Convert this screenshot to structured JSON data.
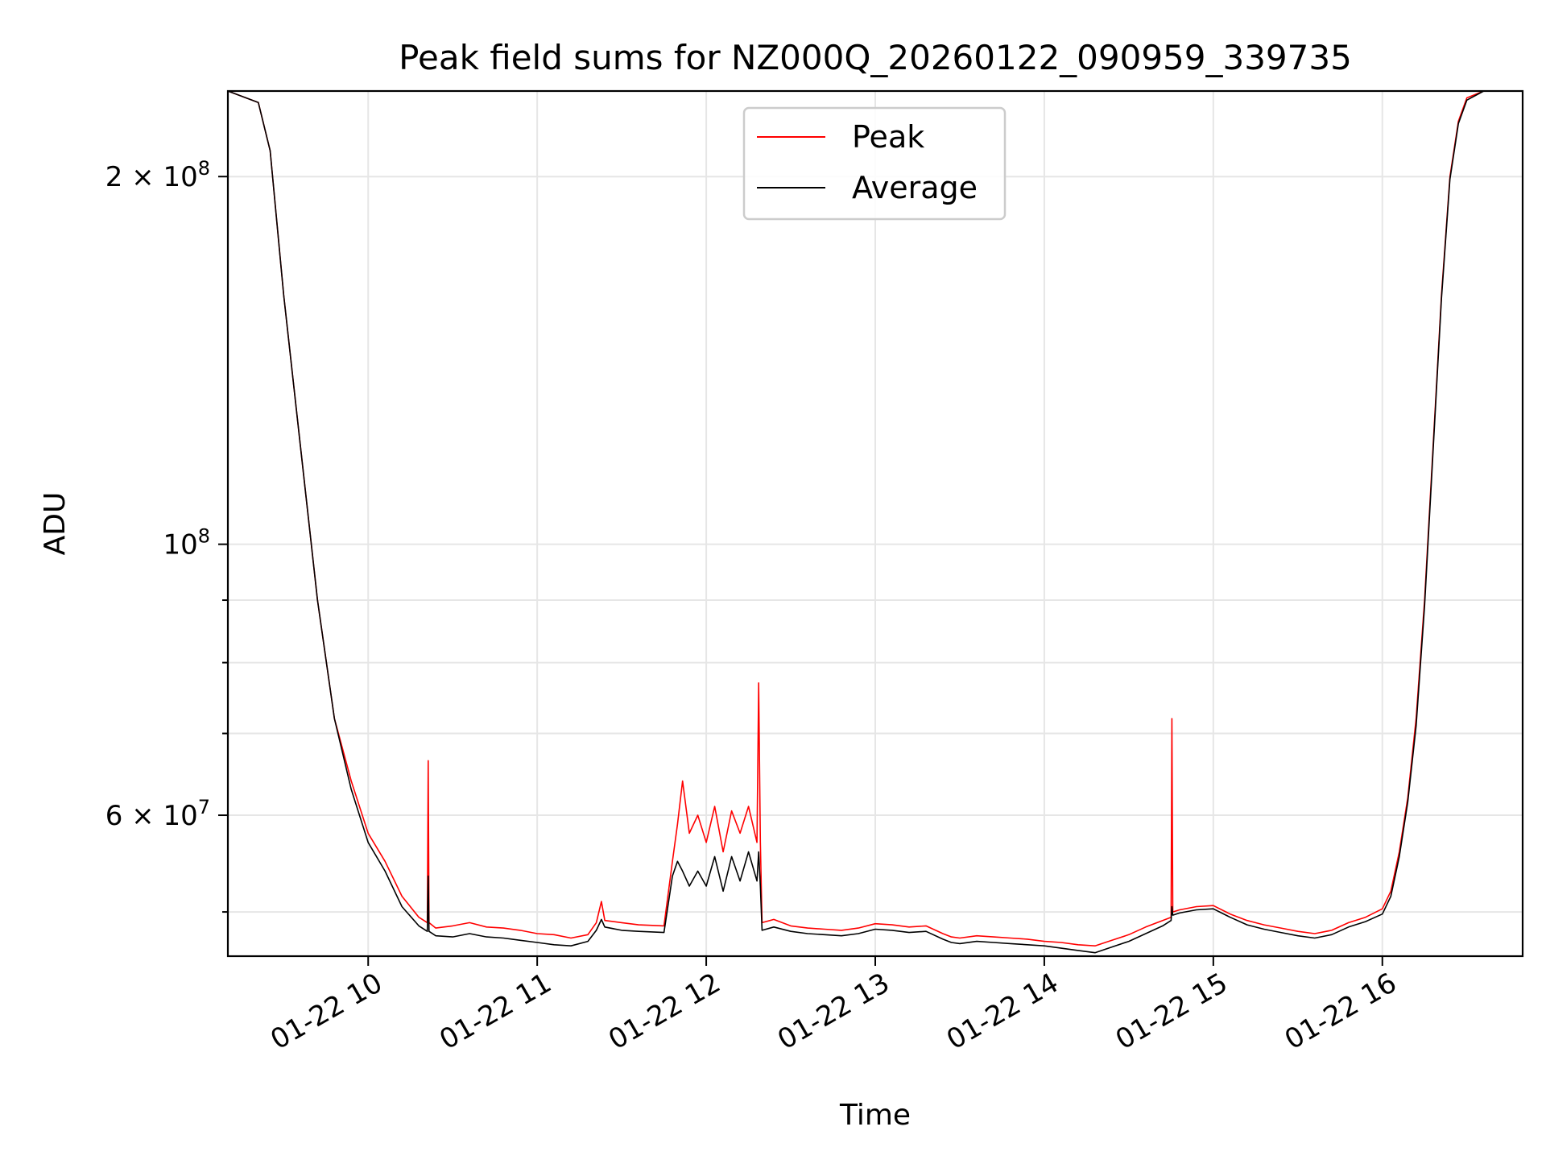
{
  "chart_data": {
    "type": "line",
    "title": "Peak field sums for NZ000Q_20260122_090959_339735",
    "xlabel": "Time",
    "ylabel": "ADU",
    "x_axis": {
      "unit": "hours on 2026-01-22",
      "range": [
        9.17,
        16.83
      ],
      "ticks": [
        {
          "value": 10,
          "label": "01-22 10"
        },
        {
          "value": 11,
          "label": "01-22 11"
        },
        {
          "value": 12,
          "label": "01-22 12"
        },
        {
          "value": 13,
          "label": "01-22 13"
        },
        {
          "value": 14,
          "label": "01-22 14"
        },
        {
          "value": 15,
          "label": "01-22 15"
        },
        {
          "value": 16,
          "label": "01-22 16"
        }
      ]
    },
    "y_axis": {
      "scale": "log",
      "range": [
        46000000,
        235000000
      ],
      "major_ticks": [
        {
          "value": 100000000,
          "mantissa": "",
          "exponent": "8"
        },
        {
          "value": 200000000,
          "mantissa": "2",
          "exponent": "8"
        },
        {
          "value": 60000000,
          "mantissa": "6",
          "exponent": "7"
        }
      ],
      "minor_ticks": [
        50000000,
        70000000,
        80000000,
        90000000
      ],
      "times_symbol": "×",
      "base": "10"
    },
    "grid": true,
    "legend": {
      "placement": "top-center",
      "entries": [
        {
          "label": "Peak",
          "color": "#ff0000"
        },
        {
          "label": "Average",
          "color": "#000000"
        }
      ]
    },
    "series": [
      {
        "name": "Peak",
        "color": "#ff0000",
        "x": [
          9.17,
          9.35,
          9.42,
          9.5,
          9.6,
          9.7,
          9.8,
          9.9,
          10.0,
          10.1,
          10.2,
          10.3,
          10.35,
          10.355,
          10.36,
          10.4,
          10.5,
          10.6,
          10.7,
          10.8,
          10.9,
          11.0,
          11.1,
          11.2,
          11.3,
          11.35,
          11.38,
          11.4,
          11.5,
          11.6,
          11.75,
          11.8,
          11.83,
          11.86,
          11.9,
          11.95,
          12.0,
          12.05,
          12.1,
          12.15,
          12.2,
          12.25,
          12.3,
          12.31,
          12.32,
          12.33,
          12.4,
          12.5,
          12.6,
          12.7,
          12.8,
          12.9,
          13.0,
          13.1,
          13.2,
          13.3,
          13.4,
          13.45,
          13.5,
          13.6,
          13.7,
          13.8,
          13.9,
          14.0,
          14.1,
          14.2,
          14.3,
          14.4,
          14.5,
          14.6,
          14.7,
          14.75,
          14.755,
          14.76,
          14.8,
          14.9,
          15.0,
          15.1,
          15.2,
          15.3,
          15.4,
          15.5,
          15.6,
          15.7,
          15.8,
          15.9,
          16.0,
          16.05,
          16.1,
          16.15,
          16.2,
          16.25,
          16.3,
          16.35,
          16.4,
          16.45,
          16.5,
          16.6,
          16.7,
          16.83
        ],
        "y": [
          235000000,
          230000000,
          210000000,
          160000000,
          120000000,
          90000000,
          72000000,
          64000000,
          58000000,
          55000000,
          51500000,
          49500000,
          49000000,
          66500000,
          49000000,
          48500000,
          48700000,
          49000000,
          48600000,
          48500000,
          48300000,
          48000000,
          47900000,
          47600000,
          47900000,
          49000000,
          51000000,
          49200000,
          49000000,
          48800000,
          48700000,
          55000000,
          59000000,
          64000000,
          58000000,
          60000000,
          57000000,
          61000000,
          56000000,
          60500000,
          58000000,
          61000000,
          57000000,
          77000000,
          57000000,
          49000000,
          49300000,
          48700000,
          48500000,
          48400000,
          48300000,
          48500000,
          48900000,
          48800000,
          48600000,
          48700000,
          48000000,
          47700000,
          47600000,
          47800000,
          47700000,
          47600000,
          47500000,
          47300000,
          47200000,
          47000000,
          46900000,
          47400000,
          47900000,
          48600000,
          49200000,
          49500000,
          72000000,
          50000000,
          50200000,
          50500000,
          50600000,
          49800000,
          49200000,
          48800000,
          48500000,
          48200000,
          48000000,
          48300000,
          49000000,
          49500000,
          50300000,
          52000000,
          56000000,
          62000000,
          72000000,
          90000000,
          120000000,
          160000000,
          200000000,
          222000000,
          232000000,
          235000000,
          235000000,
          235000000
        ]
      },
      {
        "name": "Average",
        "color": "#000000",
        "x": [
          9.17,
          9.35,
          9.42,
          9.5,
          9.6,
          9.7,
          9.8,
          9.9,
          10.0,
          10.1,
          10.2,
          10.3,
          10.35,
          10.355,
          10.36,
          10.4,
          10.5,
          10.6,
          10.7,
          10.8,
          10.9,
          11.0,
          11.1,
          11.2,
          11.3,
          11.35,
          11.38,
          11.4,
          11.5,
          11.6,
          11.75,
          11.8,
          11.83,
          11.86,
          11.9,
          11.95,
          12.0,
          12.05,
          12.1,
          12.15,
          12.2,
          12.25,
          12.3,
          12.31,
          12.32,
          12.33,
          12.4,
          12.5,
          12.6,
          12.7,
          12.8,
          12.9,
          13.0,
          13.1,
          13.2,
          13.3,
          13.4,
          13.45,
          13.5,
          13.6,
          13.7,
          13.8,
          13.9,
          14.0,
          14.1,
          14.2,
          14.3,
          14.4,
          14.5,
          14.6,
          14.7,
          14.75,
          14.755,
          14.76,
          14.8,
          14.9,
          15.0,
          15.1,
          15.2,
          15.3,
          15.4,
          15.5,
          15.6,
          15.7,
          15.8,
          15.9,
          16.0,
          16.05,
          16.1,
          16.15,
          16.2,
          16.25,
          16.3,
          16.35,
          16.4,
          16.45,
          16.5,
          16.6,
          16.7,
          16.83
        ],
        "y": [
          235000000,
          230000000,
          210000000,
          160000000,
          120000000,
          90000000,
          72000000,
          63000000,
          57000000,
          54000000,
          50500000,
          48700000,
          48200000,
          53500000,
          48200000,
          47800000,
          47700000,
          48000000,
          47700000,
          47600000,
          47400000,
          47200000,
          47000000,
          46900000,
          47300000,
          48300000,
          49300000,
          48600000,
          48300000,
          48200000,
          48100000,
          53500000,
          55000000,
          54000000,
          52500000,
          54000000,
          52500000,
          55500000,
          52000000,
          55500000,
          53000000,
          56000000,
          53000000,
          56000000,
          52500000,
          48300000,
          48600000,
          48200000,
          48000000,
          47900000,
          47800000,
          48000000,
          48400000,
          48300000,
          48100000,
          48200000,
          47500000,
          47200000,
          47100000,
          47300000,
          47200000,
          47100000,
          47000000,
          46900000,
          46700000,
          46500000,
          46300000,
          46800000,
          47300000,
          48000000,
          48700000,
          49200000,
          50500000,
          49700000,
          49900000,
          50200000,
          50300000,
          49500000,
          48800000,
          48400000,
          48100000,
          47800000,
          47600000,
          47900000,
          48600000,
          49100000,
          49800000,
          51500000,
          55500000,
          61500000,
          71000000,
          89000000,
          119000000,
          159000000,
          199000000,
          221000000,
          231000000,
          235000000,
          235000000,
          235000000
        ]
      }
    ]
  }
}
